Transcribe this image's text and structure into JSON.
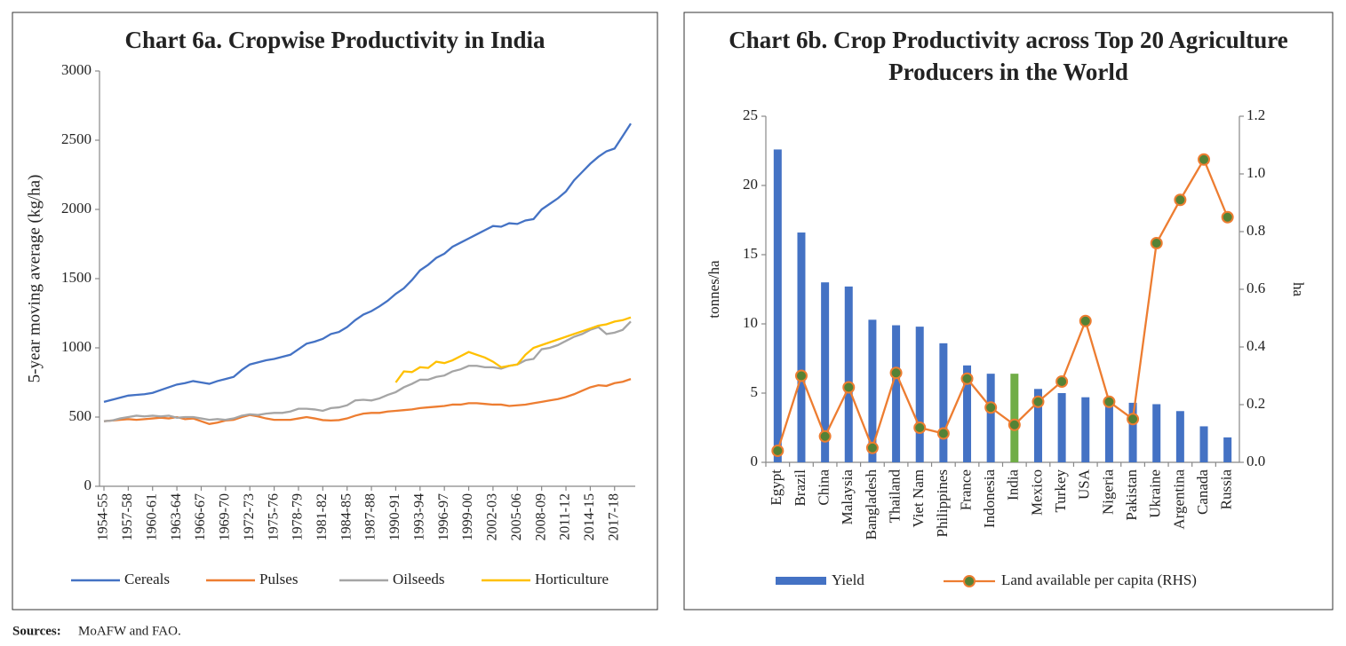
{
  "chart_data": [
    {
      "type": "line",
      "title": "Chart 6a. Cropwise Productivity in India",
      "ylabel": "5-year moving average (kg/ha)",
      "categories": [
        "1954-55",
        null,
        null,
        "1957-58",
        null,
        null,
        "1960-61",
        null,
        null,
        "1963-64",
        null,
        null,
        "1966-67",
        null,
        null,
        "1969-70",
        null,
        null,
        "1972-73",
        null,
        null,
        "1975-76",
        null,
        null,
        "1978-79",
        null,
        null,
        "1981-82",
        null,
        null,
        "1984-85",
        null,
        null,
        "1987-88",
        null,
        null,
        "1990-91",
        null,
        null,
        "1993-94",
        null,
        null,
        "1996-97",
        null,
        null,
        "1999-00",
        null,
        null,
        "2002-03",
        null,
        null,
        "2005-06",
        null,
        null,
        "2008-09",
        null,
        null,
        "2011-12",
        null,
        null,
        "2014-15",
        null,
        null,
        "2017-18",
        null,
        null
      ],
      "ylim": [
        0,
        3000
      ],
      "yticks": [
        0,
        500,
        1000,
        1500,
        2000,
        2500,
        3000
      ],
      "legend": "bottom",
      "series": [
        {
          "name": "Cereals",
          "color": "#4472c4",
          "values": [
            610,
            625,
            640,
            655,
            660,
            665,
            675,
            695,
            715,
            735,
            745,
            760,
            750,
            740,
            760,
            775,
            790,
            840,
            880,
            895,
            910,
            920,
            935,
            950,
            990,
            1030,
            1045,
            1065,
            1100,
            1115,
            1150,
            1200,
            1240,
            1265,
            1300,
            1340,
            1390,
            1430,
            1490,
            1560,
            1600,
            1650,
            1680,
            1730,
            1760,
            1790,
            1820,
            1850,
            1880,
            1875,
            1900,
            1895,
            1920,
            1930,
            2000,
            2040,
            2080,
            2130,
            2210,
            2270,
            2330,
            2380,
            2420,
            2440,
            2530,
            2620
          ]
        },
        {
          "name": "Pulses",
          "color": "#ed7d31",
          "values": [
            470,
            475,
            480,
            485,
            480,
            485,
            490,
            495,
            490,
            500,
            485,
            490,
            470,
            450,
            460,
            475,
            480,
            500,
            515,
            505,
            490,
            480,
            480,
            480,
            490,
            500,
            490,
            478,
            475,
            478,
            490,
            510,
            525,
            530,
            530,
            540,
            545,
            550,
            555,
            565,
            570,
            575,
            580,
            590,
            590,
            600,
            600,
            595,
            590,
            590,
            580,
            585,
            590,
            600,
            610,
            620,
            630,
            645,
            665,
            690,
            715,
            730,
            725,
            745,
            755,
            775
          ]
        },
        {
          "name": "Oilseeds",
          "color": "#a5a5a5",
          "values": [
            470,
            475,
            490,
            500,
            510,
            505,
            510,
            505,
            510,
            495,
            500,
            500,
            490,
            480,
            485,
            480,
            490,
            510,
            520,
            515,
            525,
            530,
            530,
            540,
            560,
            560,
            555,
            545,
            565,
            570,
            585,
            620,
            625,
            620,
            635,
            660,
            680,
            715,
            740,
            770,
            770,
            790,
            800,
            830,
            845,
            870,
            870,
            860,
            860,
            850,
            870,
            880,
            910,
            920,
            990,
            1000,
            1020,
            1050,
            1080,
            1100,
            1130,
            1150,
            1100,
            1110,
            1130,
            1190
          ]
        },
        {
          "name": "Horticulture",
          "color": "#ffc000",
          "values": [
            null,
            null,
            null,
            null,
            null,
            null,
            null,
            null,
            null,
            null,
            null,
            null,
            null,
            null,
            null,
            null,
            null,
            null,
            null,
            null,
            null,
            null,
            null,
            null,
            null,
            null,
            null,
            null,
            null,
            null,
            null,
            null,
            null,
            null,
            null,
            null,
            750,
            830,
            825,
            860,
            855,
            900,
            890,
            910,
            940,
            970,
            950,
            930,
            900,
            860,
            870,
            880,
            950,
            1000,
            1020,
            1040,
            1060,
            1080,
            1100,
            1120,
            1140,
            1160,
            1170,
            1190,
            1200,
            1220
          ]
        }
      ]
    },
    {
      "type": "bar_line",
      "title": [
        "Chart 6b. Crop Productivity across Top 20 Agriculture",
        "Producers in the World"
      ],
      "ylabel": "tonnes/ha",
      "y2label": "ha",
      "categories": [
        "Egypt",
        "Brazil",
        "China",
        "Malaysia",
        "Bangladesh",
        "Thailand",
        "Viet Nam",
        "Philippines",
        "France",
        "Indonesia",
        "India",
        "Mexico",
        "Turkey",
        "USA",
        "Nigeria",
        "Pakistan",
        "Ukraine",
        "Argentina",
        "Canada",
        "Russia"
      ],
      "ylim": [
        0,
        25
      ],
      "yticks": [
        0,
        5,
        10,
        15,
        20,
        25
      ],
      "y2lim": [
        0,
        1.2
      ],
      "y2ticks": [
        {
          "value": 0,
          "label": "0.0"
        },
        0.2,
        0.4,
        0.6,
        0.8,
        {
          "value": 1,
          "label": "1.0"
        },
        1.2
      ],
      "legend": "bottom",
      "series": [
        {
          "name": "Yield",
          "type": "bar",
          "color": "#4472c4",
          "colors": [
            "#4472c4",
            "#4472c4",
            "#4472c4",
            "#4472c4",
            "#4472c4",
            "#4472c4",
            "#4472c4",
            "#4472c4",
            "#4472c4",
            "#4472c4",
            "#70ad47",
            "#4472c4",
            "#4472c4",
            "#4472c4",
            "#4472c4",
            "#4472c4",
            "#4472c4",
            "#4472c4",
            "#4472c4",
            "#4472c4"
          ],
          "values": [
            22.6,
            16.6,
            13.0,
            12.7,
            10.3,
            9.9,
            9.8,
            8.6,
            7.0,
            6.4,
            6.4,
            5.3,
            5.0,
            4.7,
            4.5,
            4.3,
            4.2,
            3.7,
            2.6,
            1.8
          ]
        },
        {
          "name": "Land available per capita (RHS)",
          "type": "line",
          "axis": "y2",
          "color": "#ed7d31",
          "marker_color": "#548235",
          "values": [
            0.04,
            0.3,
            0.09,
            0.26,
            0.05,
            0.31,
            0.12,
            0.1,
            0.29,
            0.19,
            0.13,
            0.21,
            0.28,
            0.49,
            0.21,
            0.15,
            0.76,
            0.91,
            1.05,
            0.85
          ]
        }
      ]
    }
  ],
  "footer": {
    "label": "Sources:",
    "text": "MoAFW and FAO."
  }
}
